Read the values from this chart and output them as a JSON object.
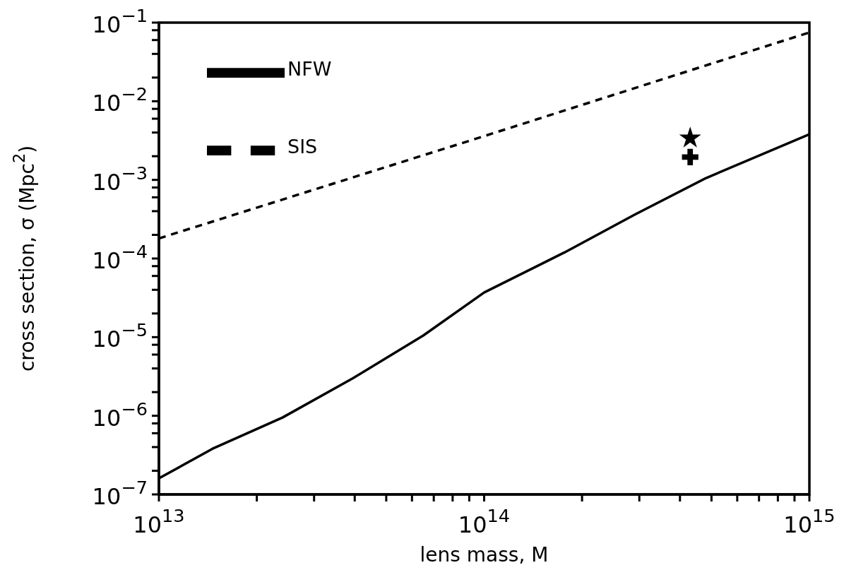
{
  "chart_data": {
    "type": "line",
    "xlabel": "lens mass, M",
    "ylabel": "cross section, σ (Mpc$^{2}$)",
    "log": "xy",
    "legend": "top left",
    "grid": false,
    "xlim": [
      10000000000000.0,
      1000000000000000.0
    ],
    "ylim": [
      1e-07,
      0.1
    ],
    "xticks": [
      {
        "value": 10000000000000.0,
        "label": "10$^{13}$"
      },
      {
        "value": 20000000000000.0,
        "label": null
      },
      {
        "value": 30000000000000.0,
        "label": null
      },
      {
        "value": 40000000000000.0,
        "label": null
      },
      {
        "value": 50000000000000.0,
        "label": null
      },
      {
        "value": 60000000000000.0,
        "label": null
      },
      {
        "value": 70000000000000.0,
        "label": null
      },
      {
        "value": 80000000000000.0,
        "label": null
      },
      {
        "value": 90000000000000.0,
        "label": null
      },
      {
        "value": 100000000000000.0,
        "label": "10$^{14}$"
      },
      {
        "value": 200000000000000.0,
        "label": null
      },
      {
        "value": 300000000000000.0,
        "label": null
      },
      {
        "value": 400000000000000.0,
        "label": null
      },
      {
        "value": 500000000000000.0,
        "label": null
      },
      {
        "value": 600000000000000.0,
        "label": null
      },
      {
        "value": 700000000000000.0,
        "label": null
      },
      {
        "value": 800000000000000.0,
        "label": null
      },
      {
        "value": 900000000000000.0,
        "label": null
      },
      {
        "value": 1000000000000000.0,
        "label": "10$^{15}$"
      }
    ],
    "yticks": [
      {
        "value": 1e-07,
        "label": "10$^{−7}$"
      },
      {
        "value": 2e-07,
        "label": null
      },
      {
        "value": 4e-07,
        "label": null
      },
      {
        "value": 6e-07,
        "label": null
      },
      {
        "value": 8e-07,
        "label": null
      },
      {
        "value": 1e-06,
        "label": "10$^{−6}$"
      },
      {
        "value": 2e-06,
        "label": null
      },
      {
        "value": 4e-06,
        "label": null
      },
      {
        "value": 6e-06,
        "label": null
      },
      {
        "value": 8e-06,
        "label": null
      },
      {
        "value": 1e-05,
        "label": "10$^{−5}$"
      },
      {
        "value": 2e-05,
        "label": null
      },
      {
        "value": 4e-05,
        "label": null
      },
      {
        "value": 6e-05,
        "label": null
      },
      {
        "value": 8e-05,
        "label": null
      },
      {
        "value": 0.0001,
        "label": "10$^{−4}$"
      },
      {
        "value": 0.0002,
        "label": null
      },
      {
        "value": 0.0004,
        "label": null
      },
      {
        "value": 0.0006,
        "label": null
      },
      {
        "value": 0.0008,
        "label": null
      },
      {
        "value": 0.001,
        "label": "10$^{−3}$"
      },
      {
        "value": 0.002,
        "label": null
      },
      {
        "value": 0.004,
        "label": null
      },
      {
        "value": 0.006,
        "label": null
      },
      {
        "value": 0.008,
        "label": null
      },
      {
        "value": 0.01,
        "label": "10$^{−2}$"
      },
      {
        "value": 0.02,
        "label": null
      },
      {
        "value": 0.04,
        "label": null
      },
      {
        "value": 0.06,
        "label": null
      },
      {
        "value": 0.08,
        "label": null
      },
      {
        "value": 0.1,
        "label": "10$^{−1}$"
      }
    ],
    "series": [
      {
        "name": "NFW",
        "color": "#000000",
        "line_style": "solid",
        "marker": "none",
        "x": [
          10000000000000.0,
          14600000000000.0,
          24000000000000.0,
          39500000000000.0,
          65000000000000.0,
          100000000000000.0,
          177000000000000.0,
          290000000000000.0,
          480000000000000.0,
          1000000000000000.0
        ],
        "values": [
          1.6e-07,
          3.8e-07,
          9.5e-07,
          3e-06,
          1.05e-05,
          3.7e-05,
          0.00012,
          0.00036,
          0.00105,
          0.0038
        ]
      },
      {
        "name": "SIS",
        "color": "#000000",
        "line_style": "dashed",
        "marker": "none",
        "x": [
          10000000000000.0,
          100000000000000.0,
          1000000000000000.0
        ],
        "values": [
          0.00018,
          0.0036,
          0.075
        ]
      },
      {
        "type": "scatter",
        "color": "#000000",
        "marker": "star",
        "x": [
          430000000000000.0
        ],
        "values": [
          0.0034
        ]
      },
      {
        "type": "scatter",
        "color": "#000000",
        "marker": "cross",
        "x": [
          430000000000000.0
        ],
        "values": [
          0.00195
        ]
      }
    ]
  }
}
